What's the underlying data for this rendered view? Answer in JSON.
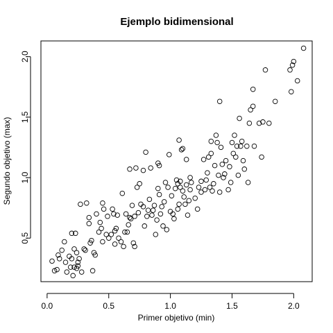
{
  "chart_data": {
    "type": "scatter",
    "title": "Ejemplo bidimensional",
    "xlabel": "Primer objetivo (min)",
    "ylabel": "Segundo objetivo (max)",
    "xlim": [
      -0.05,
      2.15
    ],
    "ylim": [
      0.14,
      2.13
    ],
    "xticks": [
      "0.0",
      "0.5",
      "1.0",
      "1.5",
      "2.0"
    ],
    "yticks": [
      "0.5",
      "1.0",
      "1.5",
      "2.0"
    ],
    "grid": false,
    "marker": "open-circle",
    "points": [
      [
        0.04,
        0.31
      ],
      [
        0.06,
        0.23
      ],
      [
        0.08,
        0.24
      ],
      [
        0.09,
        0.36
      ],
      [
        0.1,
        0.33
      ],
      [
        0.12,
        0.4
      ],
      [
        0.14,
        0.47
      ],
      [
        0.15,
        0.3
      ],
      [
        0.16,
        0.22
      ],
      [
        0.18,
        0.35
      ],
      [
        0.19,
        0.26
      ],
      [
        0.2,
        0.33
      ],
      [
        0.2,
        0.54
      ],
      [
        0.21,
        0.19
      ],
      [
        0.22,
        0.26
      ],
      [
        0.22,
        0.41
      ],
      [
        0.23,
        0.54
      ],
      [
        0.24,
        0.38
      ],
      [
        0.24,
        0.25
      ],
      [
        0.25,
        0.3
      ],
      [
        0.25,
        0.27
      ],
      [
        0.26,
        0.33
      ],
      [
        0.27,
        0.78
      ],
      [
        0.28,
        0.22
      ],
      [
        0.3,
        0.41
      ],
      [
        0.31,
        0.4
      ],
      [
        0.32,
        0.79
      ],
      [
        0.34,
        0.62
      ],
      [
        0.34,
        0.67
      ],
      [
        0.35,
        0.46
      ],
      [
        0.36,
        0.48
      ],
      [
        0.37,
        0.23
      ],
      [
        0.38,
        0.38
      ],
      [
        0.39,
        0.36
      ],
      [
        0.4,
        0.7
      ],
      [
        0.42,
        0.55
      ],
      [
        0.43,
        0.63
      ],
      [
        0.44,
        0.58
      ],
      [
        0.45,
        0.79
      ],
      [
        0.45,
        0.47
      ],
      [
        0.46,
        0.74
      ],
      [
        0.48,
        0.53
      ],
      [
        0.49,
        0.68
      ],
      [
        0.5,
        0.5
      ],
      [
        0.52,
        0.53
      ],
      [
        0.53,
        0.74
      ],
      [
        0.54,
        0.7
      ],
      [
        0.55,
        0.56
      ],
      [
        0.55,
        0.45
      ],
      [
        0.56,
        0.58
      ],
      [
        0.57,
        0.69
      ],
      [
        0.58,
        0.5
      ],
      [
        0.6,
        0.47
      ],
      [
        0.61,
        0.87
      ],
      [
        0.62,
        0.43
      ],
      [
        0.63,
        0.55
      ],
      [
        0.64,
        0.7
      ],
      [
        0.65,
        0.55
      ],
      [
        0.66,
        0.61
      ],
      [
        0.67,
        0.67
      ],
      [
        0.67,
        1.07
      ],
      [
        0.68,
        0.66
      ],
      [
        0.69,
        0.77
      ],
      [
        0.7,
        0.46
      ],
      [
        0.71,
        0.43
      ],
      [
        0.71,
        0.68
      ],
      [
        0.72,
        1.08
      ],
      [
        0.73,
        0.92
      ],
      [
        0.74,
        0.71
      ],
      [
        0.75,
        0.95
      ],
      [
        0.76,
        0.78
      ],
      [
        0.78,
        0.76
      ],
      [
        0.78,
        1.06
      ],
      [
        0.79,
        0.6
      ],
      [
        0.8,
        1.21
      ],
      [
        0.81,
        0.68
      ],
      [
        0.82,
        0.73
      ],
      [
        0.83,
        0.82
      ],
      [
        0.84,
        1.08
      ],
      [
        0.85,
        0.69
      ],
      [
        0.86,
        0.73
      ],
      [
        0.87,
        0.77
      ],
      [
        0.88,
        0.53
      ],
      [
        0.89,
        0.65
      ],
      [
        0.9,
        0.91
      ],
      [
        0.9,
        1.12
      ],
      [
        0.91,
        0.86
      ],
      [
        0.91,
        1.1
      ],
      [
        0.92,
        0.7
      ],
      [
        0.93,
        0.76
      ],
      [
        0.94,
        0.6
      ],
      [
        0.95,
        0.8
      ],
      [
        0.96,
        0.96
      ],
      [
        0.97,
        0.57
      ],
      [
        0.98,
        0.92
      ],
      [
        0.99,
        1.19
      ],
      [
        1.0,
        0.72
      ],
      [
        1.01,
        0.85
      ],
      [
        1.02,
        0.7
      ],
      [
        1.03,
        0.66
      ],
      [
        1.04,
        0.91
      ],
      [
        1.05,
        0.98
      ],
      [
        1.06,
        0.95
      ],
      [
        1.06,
        0.74
      ],
      [
        1.07,
        1.31
      ],
      [
        1.07,
        0.78
      ],
      [
        1.08,
        0.92
      ],
      [
        1.08,
        0.97
      ],
      [
        1.09,
        1.23
      ],
      [
        1.1,
        0.89
      ],
      [
        1.1,
        1.24
      ],
      [
        1.11,
        0.84
      ],
      [
        1.12,
        0.78
      ],
      [
        1.13,
        1.15
      ],
      [
        1.13,
        0.94
      ],
      [
        1.14,
        0.69
      ],
      [
        1.15,
        0.81
      ],
      [
        1.16,
        1.0
      ],
      [
        1.16,
        0.9
      ],
      [
        1.17,
        0.96
      ],
      [
        1.2,
        0.83
      ],
      [
        1.22,
        0.74
      ],
      [
        1.23,
        0.92
      ],
      [
        1.25,
        0.88
      ],
      [
        1.25,
        0.97
      ],
      [
        1.27,
        1.15
      ],
      [
        1.28,
        0.9
      ],
      [
        1.29,
        0.98
      ],
      [
        1.3,
        1.04
      ],
      [
        1.31,
        1.17
      ],
      [
        1.32,
        0.92
      ],
      [
        1.33,
        1.2
      ],
      [
        1.33,
        1.3
      ],
      [
        1.34,
        0.89
      ],
      [
        1.35,
        0.95
      ],
      [
        1.36,
        1.1
      ],
      [
        1.37,
        1.35
      ],
      [
        1.38,
        1.29
      ],
      [
        1.39,
        1.02
      ],
      [
        1.4,
        1.63
      ],
      [
        1.4,
        0.88
      ],
      [
        1.41,
        1.25
      ],
      [
        1.42,
        1.11
      ],
      [
        1.43,
        1.0
      ],
      [
        1.44,
        1.03
      ],
      [
        1.45,
        1.14
      ],
      [
        1.47,
        0.9
      ],
      [
        1.48,
        1.09
      ],
      [
        1.49,
        0.96
      ],
      [
        1.5,
        1.29
      ],
      [
        1.51,
        1.2
      ],
      [
        1.52,
        1.35
      ],
      [
        1.53,
        1.17
      ],
      [
        1.54,
        1.26
      ],
      [
        1.55,
        1.02
      ],
      [
        1.56,
        1.49
      ],
      [
        1.57,
        1.26
      ],
      [
        1.58,
        1.3
      ],
      [
        1.59,
        1.14
      ],
      [
        1.6,
        1.07
      ],
      [
        1.62,
        1.26
      ],
      [
        1.63,
        0.96
      ],
      [
        1.64,
        1.45
      ],
      [
        1.65,
        1.56
      ],
      [
        1.67,
        1.73
      ],
      [
        1.67,
        1.59
      ],
      [
        1.68,
        1.26
      ],
      [
        1.72,
        1.45
      ],
      [
        1.74,
        1.17
      ],
      [
        1.75,
        1.46
      ],
      [
        1.77,
        1.89
      ],
      [
        1.8,
        1.45
      ],
      [
        1.85,
        1.63
      ],
      [
        1.97,
        1.89
      ],
      [
        1.98,
        1.71
      ],
      [
        1.99,
        1.93
      ],
      [
        2.0,
        1.96
      ],
      [
        2.03,
        1.8
      ],
      [
        2.08,
        2.07
      ]
    ]
  }
}
